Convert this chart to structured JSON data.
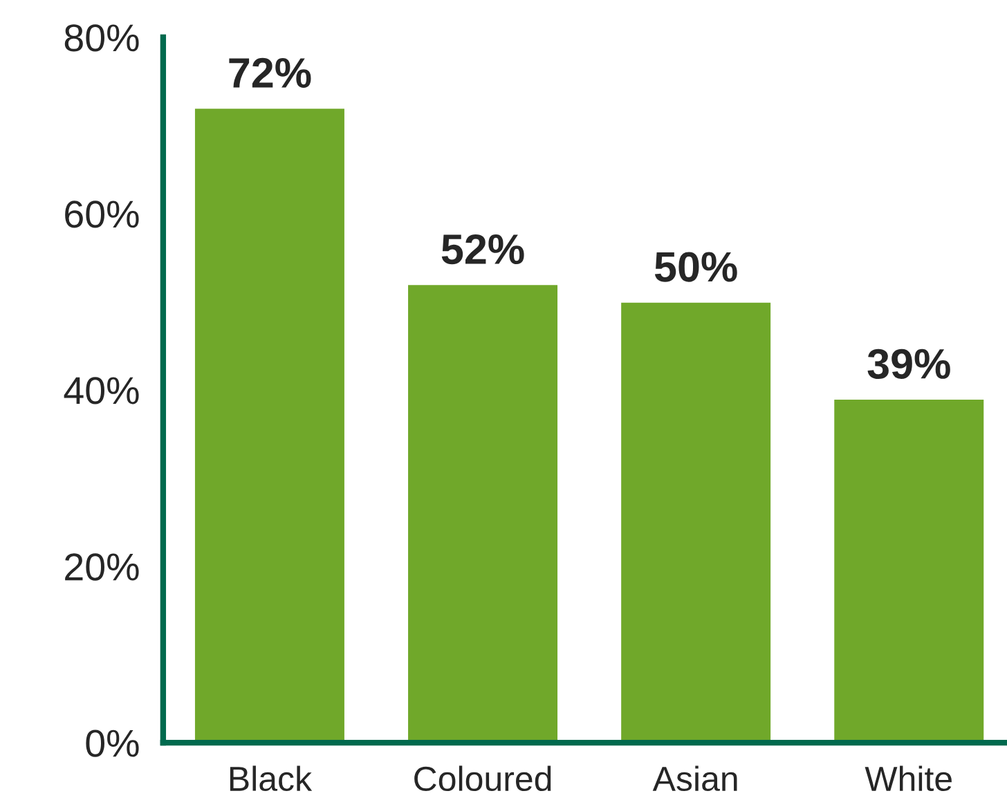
{
  "chart_data": {
    "type": "bar",
    "categories": [
      "Black",
      "Coloured",
      "Asian",
      "White"
    ],
    "values": [
      72,
      52,
      50,
      39
    ],
    "value_labels": [
      "72%",
      "52%",
      "50%",
      "39%"
    ],
    "color": "#70a82a",
    "ylim": [
      0,
      80
    ],
    "yticks": [
      {
        "value": 0,
        "label": "0%"
      },
      {
        "value": 20,
        "label": "20%"
      },
      {
        "value": 40,
        "label": "40%"
      },
      {
        "value": 60,
        "label": "60%"
      },
      {
        "value": 80,
        "label": "80%"
      }
    ],
    "grid": false,
    "legend": false
  }
}
